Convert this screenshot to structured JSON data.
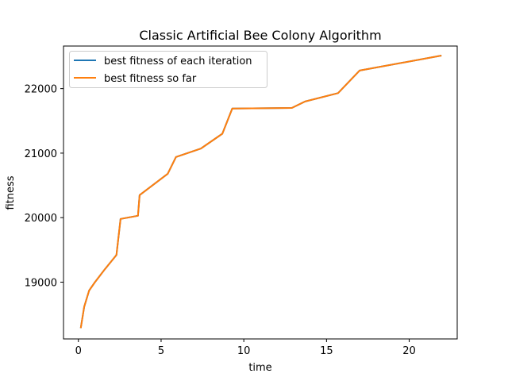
{
  "chart_data": {
    "type": "line",
    "title": "Classic Artificial Bee Colony Algorithm",
    "xlabel": "time",
    "ylabel": "fitness",
    "xlim": [
      -0.9,
      22.9
    ],
    "ylim": [
      18120,
      22660
    ],
    "xticks": [
      0,
      5,
      10,
      15,
      20
    ],
    "yticks": [
      19000,
      20000,
      21000,
      22000
    ],
    "grid": false,
    "legend_position": "upper left",
    "series": [
      {
        "name": "best fitness of each iteration",
        "color": "#1f77b4",
        "x": [
          0.15,
          0.35,
          0.65,
          1.0,
          1.6,
          2.3,
          2.55,
          3.6,
          3.7,
          5.4,
          5.9,
          7.4,
          8.7,
          9.3,
          12.9,
          13.7,
          15.7,
          17.0,
          21.9
        ],
        "y": [
          18300,
          18620,
          18870,
          19000,
          19200,
          19420,
          19980,
          20030,
          20350,
          20680,
          20940,
          21070,
          21300,
          21690,
          21700,
          21800,
          21930,
          22280,
          22510
        ]
      },
      {
        "name": "best fitness so far",
        "color": "#ff7f0e",
        "x": [
          0.15,
          0.35,
          0.65,
          1.0,
          1.6,
          2.3,
          2.55,
          3.6,
          3.7,
          5.4,
          5.9,
          7.4,
          8.7,
          9.3,
          12.9,
          13.7,
          15.7,
          17.0,
          21.9
        ],
        "y": [
          18300,
          18620,
          18870,
          19000,
          19200,
          19420,
          19980,
          20030,
          20350,
          20680,
          20940,
          21070,
          21300,
          21690,
          21700,
          21800,
          21930,
          22280,
          22510
        ]
      }
    ]
  }
}
